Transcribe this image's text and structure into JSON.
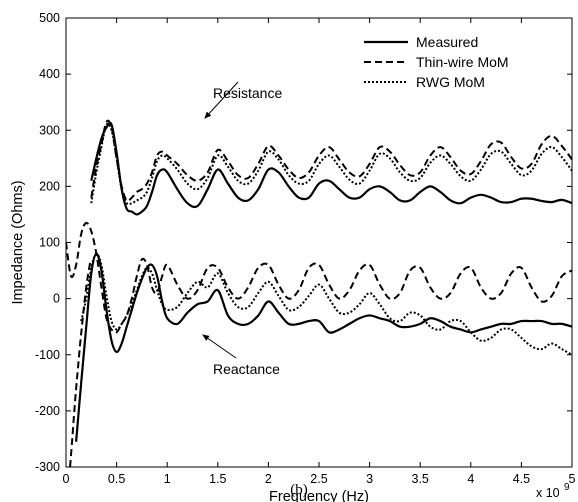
{
  "chart_data": {
    "type": "line",
    "xlabel": "Frequency (Hz)",
    "ylabel": "Impedance (Ohms)",
    "x_multiplier_label": "x 10",
    "x_multiplier_exponent": "9",
    "xlim": [
      0,
      5
    ],
    "ylim": [
      -300,
      500
    ],
    "xticks": [
      "0",
      "0.5",
      "1",
      "1.5",
      "2",
      "2.5",
      "3",
      "3.5",
      "4",
      "4.5",
      "5"
    ],
    "yticks": [
      "-300",
      "-200",
      "-100",
      "0",
      "100",
      "200",
      "300",
      "400",
      "500"
    ],
    "legend_position": "top-right",
    "caption": "(b)",
    "annotations": [
      {
        "text": "Resistance",
        "at": [
          1.15,
          275
        ],
        "arrow_to": [
          0.92,
          225
        ]
      },
      {
        "text": "Reactance",
        "at": [
          1.15,
          -140
        ],
        "arrow_to": [
          0.95,
          -90
        ]
      }
    ],
    "series": [
      {
        "name": "Measured",
        "group": "resistance",
        "style": "solid",
        "x": [
          0.25,
          0.3,
          0.35,
          0.4,
          0.45,
          0.5,
          0.55,
          0.6,
          0.65,
          0.7,
          0.75,
          0.8,
          0.85,
          0.9,
          0.95,
          1.0,
          1.1,
          1.2,
          1.3,
          1.4,
          1.5,
          1.6,
          1.7,
          1.8,
          1.9,
          2.0,
          2.1,
          2.2,
          2.3,
          2.4,
          2.5,
          2.6,
          2.7,
          2.8,
          2.9,
          3.0,
          3.1,
          3.2,
          3.3,
          3.4,
          3.5,
          3.6,
          3.7,
          3.8,
          3.9,
          4.0,
          4.1,
          4.2,
          4.3,
          4.4,
          4.5,
          4.6,
          4.7,
          4.8,
          4.9,
          5.0
        ],
        "values": [
          210,
          250,
          285,
          305,
          310,
          260,
          195,
          160,
          155,
          150,
          155,
          165,
          190,
          220,
          230,
          225,
          195,
          170,
          165,
          195,
          230,
          205,
          180,
          175,
          195,
          230,
          225,
          200,
          180,
          180,
          205,
          210,
          195,
          180,
          180,
          195,
          200,
          190,
          175,
          175,
          190,
          200,
          190,
          175,
          170,
          180,
          185,
          180,
          172,
          172,
          178,
          178,
          174,
          172,
          176,
          170
        ]
      },
      {
        "name": "Thin-wire MoM",
        "group": "resistance",
        "style": "dashed",
        "x": [
          0.25,
          0.3,
          0.35,
          0.4,
          0.45,
          0.5,
          0.55,
          0.6,
          0.65,
          0.7,
          0.75,
          0.8,
          0.85,
          0.9,
          0.95,
          1.0,
          1.1,
          1.2,
          1.3,
          1.4,
          1.5,
          1.6,
          1.7,
          1.8,
          1.9,
          2.0,
          2.1,
          2.2,
          2.3,
          2.4,
          2.5,
          2.6,
          2.7,
          2.8,
          2.9,
          3.0,
          3.1,
          3.2,
          3.3,
          3.4,
          3.5,
          3.6,
          3.7,
          3.8,
          3.9,
          4.0,
          4.1,
          4.2,
          4.3,
          4.4,
          4.5,
          4.6,
          4.7,
          4.8,
          4.9,
          5.0
        ],
        "values": [
          180,
          235,
          275,
          315,
          305,
          250,
          200,
          175,
          180,
          190,
          195,
          205,
          225,
          255,
          262,
          255,
          240,
          220,
          210,
          225,
          265,
          245,
          220,
          215,
          240,
          272,
          255,
          230,
          215,
          225,
          255,
          270,
          248,
          225,
          218,
          240,
          270,
          262,
          238,
          220,
          225,
          255,
          270,
          252,
          228,
          222,
          245,
          275,
          278,
          252,
          232,
          240,
          275,
          290,
          272,
          248
        ]
      },
      {
        "name": "RWG MoM",
        "group": "resistance",
        "style": "dotted",
        "x": [
          0.25,
          0.3,
          0.35,
          0.4,
          0.45,
          0.5,
          0.55,
          0.6,
          0.65,
          0.7,
          0.75,
          0.8,
          0.85,
          0.9,
          0.95,
          1.0,
          1.1,
          1.2,
          1.3,
          1.4,
          1.5,
          1.6,
          1.7,
          1.8,
          1.9,
          2.0,
          2.1,
          2.2,
          2.3,
          2.4,
          2.5,
          2.6,
          2.7,
          2.8,
          2.9,
          3.0,
          3.1,
          3.2,
          3.3,
          3.4,
          3.5,
          3.6,
          3.7,
          3.8,
          3.9,
          4.0,
          4.1,
          4.2,
          4.3,
          4.4,
          4.5,
          4.6,
          4.7,
          4.8,
          4.9,
          5.0
        ],
        "values": [
          170,
          225,
          270,
          310,
          300,
          250,
          195,
          170,
          170,
          175,
          180,
          190,
          215,
          245,
          255,
          250,
          230,
          205,
          195,
          215,
          255,
          235,
          210,
          205,
          228,
          262,
          248,
          220,
          205,
          210,
          240,
          255,
          235,
          212,
          205,
          228,
          258,
          250,
          225,
          210,
          215,
          242,
          255,
          240,
          218,
          210,
          230,
          258,
          262,
          240,
          220,
          228,
          258,
          270,
          252,
          228
        ]
      },
      {
        "name": "Measured",
        "group": "reactance",
        "style": "solid",
        "x": [
          0.1,
          0.15,
          0.2,
          0.25,
          0.3,
          0.35,
          0.4,
          0.45,
          0.5,
          0.55,
          0.6,
          0.65,
          0.7,
          0.75,
          0.8,
          0.85,
          0.9,
          0.95,
          1.0,
          1.1,
          1.2,
          1.3,
          1.4,
          1.5,
          1.6,
          1.7,
          1.8,
          1.9,
          2.0,
          2.1,
          2.2,
          2.3,
          2.4,
          2.5,
          2.6,
          2.7,
          2.8,
          2.9,
          3.0,
          3.1,
          3.2,
          3.3,
          3.4,
          3.5,
          3.6,
          3.7,
          3.8,
          3.9,
          4.0,
          4.1,
          4.2,
          4.3,
          4.4,
          4.5,
          4.6,
          4.7,
          4.8,
          4.9,
          5.0
        ],
        "values": [
          -255,
          -150,
          -50,
          45,
          80,
          50,
          -20,
          -75,
          -95,
          -80,
          -50,
          -20,
          10,
          35,
          55,
          60,
          40,
          -5,
          -35,
          -45,
          -25,
          -10,
          -5,
          15,
          -30,
          -45,
          -45,
          -30,
          -5,
          -25,
          -45,
          -45,
          -40,
          -40,
          -60,
          -55,
          -45,
          -35,
          -30,
          -35,
          -40,
          -50,
          -50,
          -45,
          -35,
          -40,
          -50,
          -55,
          -60,
          -55,
          -50,
          -45,
          -45,
          -40,
          -40,
          -40,
          -45,
          -45,
          -50
        ]
      },
      {
        "name": "Thin-wire MoM",
        "group": "reactance",
        "style": "dashed",
        "x": [
          0.0,
          0.05,
          0.1,
          0.15,
          0.2,
          0.25,
          0.3,
          0.35,
          0.4,
          0.45,
          0.5,
          0.55,
          0.6,
          0.65,
          0.7,
          0.75,
          0.8,
          0.85,
          0.9,
          0.95,
          1.0,
          1.1,
          1.2,
          1.3,
          1.4,
          1.5,
          1.6,
          1.7,
          1.8,
          1.9,
          2.0,
          2.1,
          2.2,
          2.3,
          2.4,
          2.5,
          2.6,
          2.7,
          2.8,
          2.9,
          3.0,
          3.1,
          3.2,
          3.3,
          3.4,
          3.5,
          3.6,
          3.7,
          3.8,
          3.9,
          4.0,
          4.1,
          4.2,
          4.3,
          4.4,
          4.5,
          4.6,
          4.7,
          4.8,
          4.9,
          5.0
        ],
        "values": [
          100,
          40,
          60,
          115,
          135,
          120,
          80,
          20,
          -35,
          -55,
          -60,
          -45,
          -30,
          0,
          40,
          70,
          60,
          20,
          10,
          40,
          60,
          25,
          0,
          15,
          55,
          55,
          20,
          0,
          20,
          55,
          60,
          25,
          0,
          15,
          55,
          60,
          25,
          0,
          15,
          50,
          60,
          25,
          0,
          10,
          50,
          55,
          20,
          0,
          10,
          45,
          55,
          20,
          0,
          10,
          45,
          55,
          20,
          -5,
          5,
          40,
          50
        ]
      },
      {
        "name": "Thin-wire MoM",
        "group": "reactance-low",
        "style": "dashed",
        "x": [
          0.04,
          0.06,
          0.08,
          0.1,
          0.12,
          0.14,
          0.16,
          0.18,
          0.2,
          0.22,
          0.24
        ],
        "values": [
          -300,
          -255,
          -205,
          -160,
          -120,
          -80,
          -45,
          -10,
          20,
          45,
          65
        ]
      },
      {
        "name": "RWG MoM",
        "group": "reactance",
        "style": "dotted",
        "x": [
          0.15,
          0.2,
          0.25,
          0.3,
          0.35,
          0.4,
          0.45,
          0.5,
          0.55,
          0.6,
          0.65,
          0.7,
          0.75,
          0.8,
          0.85,
          0.9,
          0.95,
          1.0,
          1.1,
          1.2,
          1.3,
          1.4,
          1.5,
          1.6,
          1.7,
          1.8,
          1.9,
          2.0,
          2.1,
          2.2,
          2.3,
          2.4,
          2.5,
          2.6,
          2.7,
          2.8,
          2.9,
          3.0,
          3.1,
          3.2,
          3.3,
          3.4,
          3.5,
          3.6,
          3.7,
          3.8,
          3.9,
          4.0,
          4.1,
          4.2,
          4.3,
          4.4,
          4.5,
          4.6,
          4.7,
          4.8,
          4.9,
          5.0
        ],
        "values": [
          -40,
          0,
          55,
          80,
          60,
          5,
          -40,
          -55,
          -45,
          -30,
          -10,
          15,
          40,
          55,
          45,
          15,
          -10,
          -20,
          -15,
          10,
          30,
          20,
          45,
          10,
          -15,
          -15,
          10,
          30,
          5,
          -20,
          -15,
          5,
          25,
          0,
          -25,
          -25,
          -10,
          10,
          -10,
          -35,
          -40,
          -25,
          -30,
          -50,
          -55,
          -40,
          -40,
          -60,
          -75,
          -70,
          -55,
          -55,
          -70,
          -85,
          -90,
          -80,
          -90,
          -100
        ]
      }
    ]
  }
}
